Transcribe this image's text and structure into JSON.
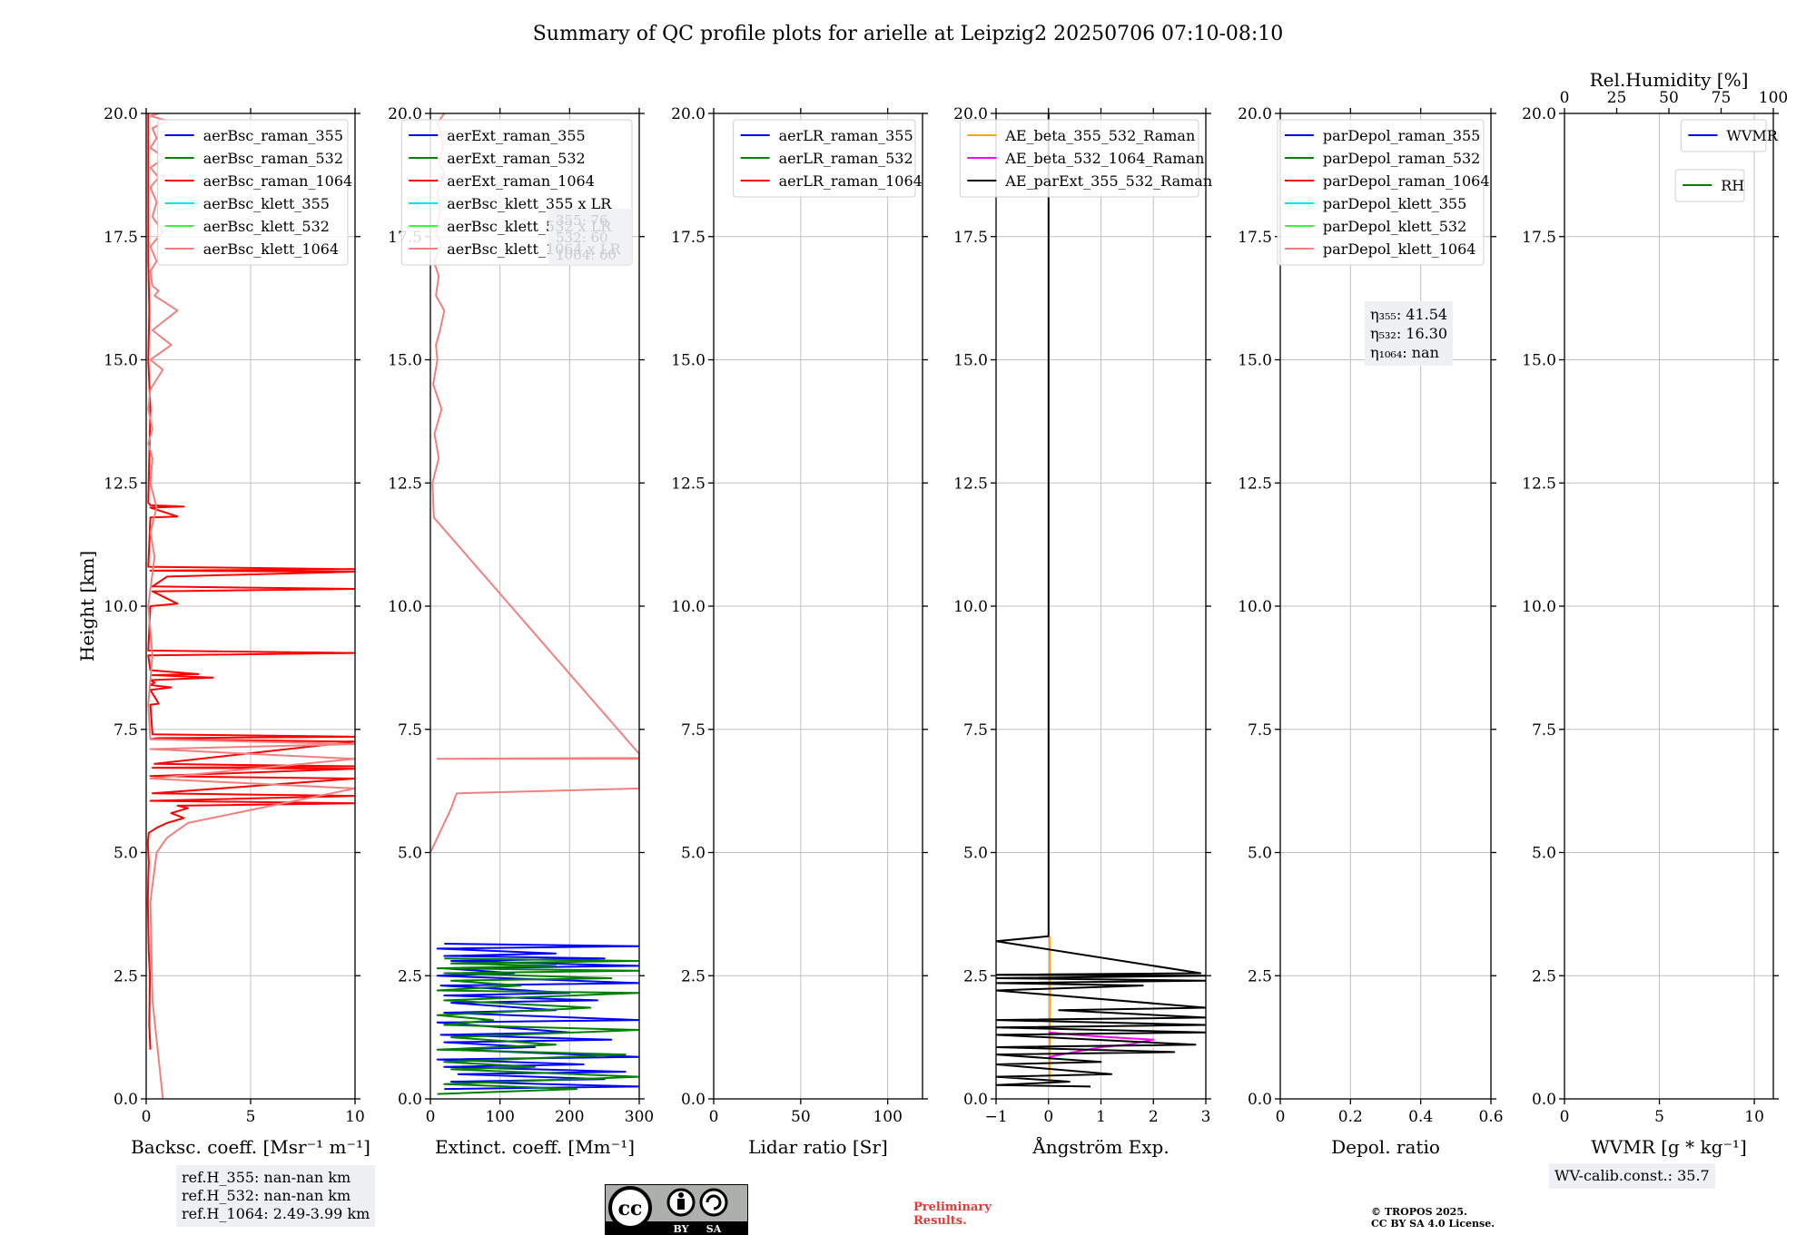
{
  "title": "Summary of QC profile plots for arielle at Leipzig2 20250706 07:10-08:10",
  "colors": {
    "raman_355": "#0000ff",
    "raman_532": "#008000",
    "raman_1064": "#ff0000",
    "klett_355": "#00e5ee",
    "klett_532": "#33ff33",
    "klett_1064": "#f08080",
    "ae_beta_355_532": "#ffa500",
    "ae_beta_532_1064": "#ff00ff",
    "ae_parext": "#000000",
    "grid": "#c0c0c0"
  },
  "chart_data": [
    {
      "id": "bsc",
      "type": "line",
      "xlabel": "Backsc. coeff. [Msr⁻¹ m⁻¹]",
      "ylabel": "Height [km]",
      "xlim": [
        0,
        10
      ],
      "ylim": [
        0,
        20
      ],
      "xticks": [
        0,
        5,
        10
      ],
      "yticks": [
        0.0,
        2.5,
        5.0,
        7.5,
        10.0,
        12.5,
        15.0,
        17.5,
        20.0
      ],
      "legend_position": "upper-right",
      "legend": [
        "aerBsc_raman_355",
        "aerBsc_raman_532",
        "aerBsc_raman_1064",
        "aerBsc_klett_355",
        "aerBsc_klett_532",
        "aerBsc_klett_1064"
      ],
      "legend_colors": [
        "raman_355",
        "raman_532",
        "raman_1064",
        "klett_355",
        "klett_532",
        "klett_1064"
      ],
      "series": [
        {
          "name": "aerBsc_raman_1064",
          "color": "raman_1064",
          "x": [
            0.2,
            0.15,
            0.18,
            0.12,
            0.1,
            0.08,
            0.1,
            0.12,
            0.1,
            0.08,
            0.1,
            0.12,
            0.5,
            1.0,
            1.8,
            1.2,
            2.0,
            1.5,
            10,
            0.2,
            10,
            0.3,
            10,
            0.2,
            10,
            0.3,
            10,
            0.4,
            10,
            0.2,
            0.5,
            10,
            0.3,
            0.2,
            0.6,
            0.2,
            1.2,
            0.2,
            0.4,
            0.2,
            3.2,
            0.3,
            2.5,
            0.2,
            0.1,
            10,
            0.1,
            0.2,
            1.5,
            0.3,
            10,
            0.3,
            1.0,
            10,
            0.2,
            10,
            0.1,
            0.2,
            1.5,
            0.2,
            1.8,
            0.2,
            0.1,
            0.2,
            0.1,
            0.15,
            0.1,
            0.1,
            0.1
          ],
          "y": [
            1.0,
            1.5,
            2.5,
            3.0,
            3.5,
            4.0,
            4.5,
            4.8,
            5.0,
            5.2,
            5.3,
            5.4,
            5.5,
            5.6,
            5.7,
            5.8,
            5.9,
            5.95,
            6.0,
            6.05,
            6.15,
            6.2,
            6.5,
            6.55,
            6.7,
            6.72,
            6.75,
            6.8,
            7.25,
            7.3,
            7.32,
            7.35,
            7.4,
            8.0,
            8.02,
            8.3,
            8.35,
            8.4,
            8.45,
            8.5,
            8.55,
            8.6,
            8.62,
            8.7,
            9.0,
            9.05,
            9.1,
            10.0,
            10.05,
            10.3,
            10.35,
            10.4,
            10.6,
            10.7,
            10.72,
            10.75,
            10.8,
            11.8,
            11.82,
            12.0,
            12.02,
            12.05,
            12.1,
            14.0,
            15.0,
            16.0,
            17.0,
            18.0,
            20.0
          ]
        },
        {
          "name": "aerBsc_klett_1064",
          "color": "klett_1064",
          "x": [
            0.8,
            0.3,
            0.2,
            0.5,
            1.0,
            2.0,
            10,
            0.2,
            10,
            0.2,
            10,
            0.2,
            0.1,
            0.3,
            0.1,
            0.4,
            0.2,
            0.5,
            0.2,
            0.3,
            0.1,
            0.3,
            0.1,
            0.2,
            0.8,
            0.2,
            1.2,
            0.3,
            1.5,
            0.4,
            0.6,
            0.3,
            0.2,
            0.5,
            0.2,
            0.8,
            0.3,
            0.5,
            0.2,
            0.6,
            0.2,
            0.9,
            0.2,
            0.5,
            0.3,
            1.0,
            0.2,
            0.6
          ],
          "y": [
            0.0,
            2.0,
            4.0,
            5.0,
            5.3,
            5.6,
            6.3,
            6.5,
            6.9,
            7.1,
            7.2,
            7.3,
            8.0,
            9.0,
            10.0,
            11.0,
            11.5,
            12.0,
            12.5,
            13.0,
            13.3,
            13.6,
            14.0,
            14.4,
            14.8,
            15.0,
            15.3,
            15.6,
            16.0,
            16.3,
            16.4,
            16.5,
            16.8,
            17.0,
            17.3,
            17.6,
            17.9,
            18.2,
            18.5,
            18.7,
            18.9,
            19.1,
            19.3,
            19.5,
            19.7,
            19.85,
            19.95,
            20.0
          ]
        }
      ]
    },
    {
      "id": "ext",
      "type": "line",
      "xlabel": "Extinct. coeff. [Mm⁻¹]",
      "ylabel": "",
      "xlim": [
        0,
        300
      ],
      "ylim": [
        0,
        20
      ],
      "xticks": [
        0,
        100,
        200,
        300
      ],
      "yticks": [
        0.0,
        2.5,
        5.0,
        7.5,
        10.0,
        12.5,
        15.0,
        17.5,
        20.0
      ],
      "legend_position": "upper-right",
      "legend": [
        "aerExt_raman_355",
        "aerExt_raman_532",
        "aerExt_raman_1064",
        "aerBsc_klett_355 x LR",
        "aerBsc_klett_532 x LR",
        "aerBsc_klett_1064 x LR"
      ],
      "legend_colors": [
        "raman_355",
        "raman_532",
        "raman_1064",
        "klett_355",
        "klett_532",
        "klett_1064"
      ],
      "series": [
        {
          "name": "aerExt_raman_355",
          "color": "raman_355",
          "x": [
            20,
            300,
            30,
            250,
            40,
            280,
            20,
            220,
            10,
            300,
            30,
            150,
            20,
            260,
            15,
            200,
            10,
            300,
            20,
            180,
            30,
            240,
            20,
            200,
            15,
            300,
            10,
            120,
            20,
            300,
            30,
            250,
            20,
            180,
            10,
            300,
            20
          ],
          "y": [
            0.2,
            0.25,
            0.35,
            0.4,
            0.5,
            0.55,
            0.65,
            0.7,
            0.8,
            0.85,
            1.0,
            1.05,
            1.15,
            1.2,
            1.3,
            1.35,
            1.55,
            1.6,
            1.75,
            1.8,
            1.95,
            2.0,
            2.1,
            2.15,
            2.3,
            2.35,
            2.5,
            2.55,
            2.65,
            2.7,
            2.8,
            2.85,
            2.9,
            2.95,
            3.05,
            3.1,
            3.15
          ]
        },
        {
          "name": "aerExt_raman_532",
          "color": "raman_532",
          "x": [
            10,
            210,
            20,
            300,
            30,
            150,
            20,
            280,
            10,
            180,
            30,
            300,
            20,
            90,
            10,
            230,
            20,
            300,
            10,
            130,
            30,
            260,
            20,
            300,
            10,
            180,
            30,
            300,
            20
          ],
          "y": [
            0.1,
            0.2,
            0.3,
            0.45,
            0.6,
            0.65,
            0.75,
            0.9,
            1.0,
            1.1,
            1.25,
            1.4,
            1.5,
            1.6,
            1.7,
            1.85,
            2.0,
            2.15,
            2.2,
            2.3,
            2.4,
            2.45,
            2.55,
            2.6,
            2.65,
            2.7,
            2.75,
            2.8,
            2.85
          ]
        },
        {
          "name": "aerBsc_klett_1064 x LR",
          "color": "klett_1064",
          "x": [
            0,
            10,
            20,
            30,
            35,
            38,
            300,
            300,
            10,
            300,
            300,
            5,
            3,
            12,
            6,
            16,
            4,
            10,
            8,
            14,
            20,
            8,
            12,
            5,
            16,
            8,
            14,
            10,
            20,
            12,
            18,
            15,
            10,
            20
          ],
          "y": [
            5.0,
            5.3,
            5.6,
            5.9,
            6.1,
            6.2,
            6.3,
            6.9,
            6.9,
            6.92,
            7.0,
            11.8,
            12.5,
            13.0,
            13.5,
            14.0,
            14.5,
            15.0,
            15.3,
            15.6,
            16.0,
            16.3,
            16.7,
            17.0,
            17.3,
            17.6,
            18.0,
            18.4,
            18.8,
            19.0,
            19.3,
            19.6,
            19.8,
            20.0
          ]
        }
      ]
    },
    {
      "id": "lr",
      "type": "line",
      "xlabel": "Lidar ratio [Sr]",
      "ylabel": "",
      "xlim": [
        0,
        120
      ],
      "ylim": [
        0,
        20
      ],
      "xticks": [
        0,
        50,
        100
      ],
      "yticks": [
        0.0,
        2.5,
        5.0,
        7.5,
        10.0,
        12.5,
        15.0,
        17.5,
        20.0
      ],
      "legend_position": "upper-right",
      "legend": [
        "aerLR_raman_355",
        "aerLR_raman_532",
        "aerLR_raman_1064"
      ],
      "legend_colors": [
        "raman_355",
        "raman_532",
        "raman_1064"
      ],
      "series": []
    },
    {
      "id": "ae",
      "type": "line",
      "xlabel": "Ångström Exp.",
      "ylabel": "",
      "xlim": [
        -1,
        3
      ],
      "ylim": [
        0,
        20
      ],
      "xticks": [
        -1,
        0,
        1,
        2,
        3
      ],
      "yticks": [
        0.0,
        2.5,
        5.0,
        7.5,
        10.0,
        12.5,
        15.0,
        17.5,
        20.0
      ],
      "legend_position": "upper-right",
      "legend": [
        "AE_beta_355_532_Raman",
        "AE_beta_532_1064_Raman",
        "AE_parExt_355_532_Raman"
      ],
      "legend_colors": [
        "ae_beta_355_532",
        "ae_beta_532_1064",
        "ae_parext"
      ],
      "series": [
        {
          "name": "AE_beta_355_532_Raman",
          "color": "ae_beta_355_532",
          "x": [
            0.02,
            0.02,
            0.03,
            0.02
          ],
          "y": [
            0.3,
            1.0,
            2.0,
            3.3
          ]
        },
        {
          "name": "AE_beta_532_1064_Raman",
          "color": "ae_beta_532_1064",
          "x": [
            0.0,
            0.5,
            1.0,
            1.5,
            2.0,
            1.2,
            0.5,
            0.0
          ],
          "y": [
            0.85,
            0.95,
            1.05,
            1.1,
            1.2,
            1.25,
            1.3,
            1.35
          ]
        },
        {
          "name": "AE_parExt_355_532_Raman",
          "color": "ae_parext",
          "x": [
            0.8,
            -1,
            0.4,
            -1,
            1.2,
            -1,
            1.0,
            -1,
            2.4,
            -1,
            2.8,
            -1,
            3,
            -1,
            3,
            -1,
            3,
            0.2,
            3,
            -1,
            1.8,
            -1,
            3,
            -1,
            3,
            -1,
            2.9,
            -1,
            0,
            0,
            0
          ],
          "y": [
            0.25,
            0.28,
            0.35,
            0.45,
            0.5,
            0.7,
            0.75,
            0.9,
            0.95,
            1.05,
            1.1,
            1.3,
            1.35,
            1.45,
            1.5,
            1.6,
            1.65,
            1.8,
            1.85,
            2.2,
            2.3,
            2.35,
            2.4,
            2.45,
            2.5,
            2.52,
            2.55,
            3.2,
            3.3,
            12.0,
            20.0
          ]
        }
      ]
    },
    {
      "id": "depol",
      "type": "line",
      "xlabel": "Depol. ratio",
      "ylabel": "",
      "xlim": [
        0,
        0.6
      ],
      "ylim": [
        0,
        20
      ],
      "xticks": [
        0.0,
        0.2,
        0.4,
        0.6
      ],
      "yticks": [
        0.0,
        2.5,
        5.0,
        7.5,
        10.0,
        12.5,
        15.0,
        17.5,
        20.0
      ],
      "legend_position": "upper-right",
      "legend": [
        "parDepol_raman_355",
        "parDepol_raman_532",
        "parDepol_raman_1064",
        "parDepol_klett_355",
        "parDepol_klett_532",
        "parDepol_klett_1064"
      ],
      "legend_colors": [
        "raman_355",
        "raman_532",
        "raman_1064",
        "klett_355",
        "klett_532",
        "klett_1064"
      ],
      "series": []
    },
    {
      "id": "wv",
      "type": "line",
      "xlabel": "WVMR [g * kg⁻¹]",
      "ylabel": "",
      "xlim": [
        0,
        11
      ],
      "ylim": [
        0,
        20
      ],
      "xticks": [
        0,
        5,
        10
      ],
      "yticks": [
        0.0,
        2.5,
        5.0,
        7.5,
        10.0,
        12.5,
        15.0,
        17.5,
        20.0
      ],
      "top_axis": {
        "label": "Rel.Humidity [%]",
        "xlim": [
          0,
          100
        ],
        "xticks": [
          0,
          25,
          50,
          75,
          100
        ]
      },
      "legend_position": "upper-right",
      "legend": [
        "WVMR"
      ],
      "legend_colors": [
        "raman_355"
      ],
      "legend2": [
        "RH"
      ],
      "legend2_colors": [
        "raman_532"
      ],
      "series": []
    }
  ],
  "overlay_ext": {
    "lines": [
      "355: 76",
      "532: 60",
      "1064: 60"
    ]
  },
  "refbox": {
    "lines": [
      "ref.H_355: nan-nan km",
      "ref.H_532: nan-nan km",
      "ref.H_1064: 2.49-3.99 km"
    ]
  },
  "eta": {
    "lines": [
      "η₃₅₅: 41.54",
      "η₅₃₂: 16.30",
      "η₁₀₆₄: nan"
    ]
  },
  "wvcalib": "WV-calib.const.: 35.7",
  "prelim": [
    "Preliminary",
    "Results."
  ],
  "tropos": [
    "© TROPOS 2025.",
    "CC BY SA 4.0 License."
  ],
  "cc": {
    "icon": "cc-by-sa-badge",
    "cc": "cc",
    "by": "BY",
    "sa": "SA"
  }
}
